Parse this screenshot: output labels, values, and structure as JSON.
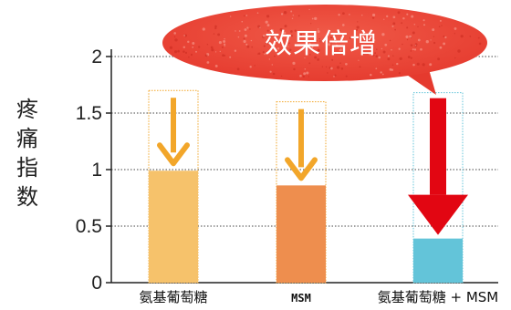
{
  "chart_data": {
    "type": "bar",
    "title": "",
    "xlabel": "",
    "ylabel": "疼痛指数",
    "ylim": [
      0,
      2
    ],
    "yticks": [
      "0",
      "0.5",
      "1",
      "1.5",
      "2"
    ],
    "grid": true,
    "categories": [
      "氨基葡萄糖",
      "MSM",
      "氨基葡萄糖 + MSM"
    ],
    "values": [
      0.99,
      0.86,
      0.39
    ],
    "initial_values": [
      1.7,
      1.6,
      1.68
    ],
    "bar_colors": [
      "#F6C26B",
      "#EE8E4E",
      "#63C4D9"
    ],
    "arrow_colors": [
      "#F2A62A",
      "#F2A62A",
      "#E20612"
    ],
    "outline_colors": [
      "#F2A62A",
      "#F2A62A",
      "#63C4D9"
    ],
    "annotation": "效果倍增",
    "annotation_color": "#E53A2E"
  }
}
